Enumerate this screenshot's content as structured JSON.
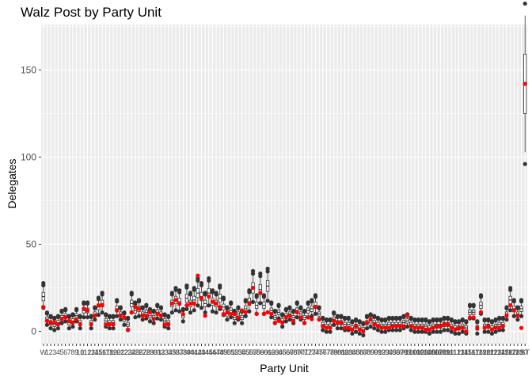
{
  "chart_data": {
    "type": "boxplot",
    "title": "Walz Post by Party Unit",
    "xlabel": "Party Unit",
    "ylabel": "Delegates",
    "ylim": [
      -7,
      176
    ],
    "yticks": [
      0,
      50,
      100,
      150
    ],
    "grid": true,
    "legend": "none",
    "colors": {
      "panel_background": "#ebebeb",
      "grid": "#ffffff",
      "simulated_points": "#333333",
      "actual_points": "#ff0000",
      "box_fill": "#ffffff",
      "box_line": "#333333"
    },
    "categories": [
      "W",
      "1",
      "2",
      "3",
      "4",
      "5",
      "6",
      "7",
      "8",
      "9",
      "10",
      "11",
      "12",
      "13",
      "14",
      "15",
      "16",
      "17",
      "18",
      "19",
      "20",
      "21",
      "22",
      "23",
      "24",
      "25",
      "26",
      "27",
      "28",
      "29",
      "30",
      "31",
      "32",
      "33",
      "34",
      "35",
      "36",
      "37",
      "38",
      "39",
      "40",
      "41",
      "42",
      "43",
      "44",
      "45",
      "46",
      "47",
      "48",
      "49",
      "50",
      "51",
      "52",
      "53",
      "54",
      "55",
      "56",
      "57",
      "58",
      "59",
      "60",
      "61",
      "62",
      "63",
      "64",
      "65",
      "66",
      "67",
      "68",
      "69",
      "70",
      "71",
      "72",
      "73",
      "74",
      "75",
      "76",
      "77",
      "78",
      "79",
      "80",
      "81",
      "82",
      "83",
      "84",
      "85",
      "86",
      "87",
      "88",
      "89",
      "90",
      "91",
      "92",
      "93",
      "94",
      "95",
      "96",
      "97",
      "98",
      "99",
      "100",
      "101",
      "102",
      "103",
      "104",
      "105",
      "106",
      "107",
      "108",
      "109",
      "110",
      "111",
      "112",
      "113",
      "114",
      "115",
      "116",
      "117",
      "118",
      "119",
      "120",
      "121",
      "122",
      "123",
      "124",
      "125",
      "126",
      "127",
      "128",
      "129",
      "130",
      "ST"
    ],
    "series": [
      {
        "values": [
          20,
          7,
          5,
          4,
          5,
          8,
          9,
          5,
          6,
          9,
          5,
          12,
          12,
          5,
          10,
          14,
          16,
          6,
          5,
          5,
          13,
          10,
          7,
          4,
          16,
          12,
          13,
          10,
          11,
          9,
          8,
          11,
          10,
          6,
          5,
          16,
          18,
          17,
          9,
          19,
          16,
          18,
          22,
          20,
          16,
          22,
          17,
          16,
          19,
          14,
          10,
          12,
          8,
          10,
          8,
          13,
          17,
          25,
          15,
          24,
          15,
          26,
          12,
          8,
          11,
          6,
          9,
          10,
          8,
          12,
          10,
          8,
          12,
          13,
          15,
          10,
          4,
          3,
          3,
          7,
          5,
          5,
          4,
          4,
          2,
          3,
          2,
          1,
          5,
          6,
          5,
          4,
          3,
          3,
          4,
          4,
          4,
          4,
          5,
          6,
          4,
          3,
          3,
          3,
          3,
          2,
          3,
          3,
          3,
          4,
          4,
          3,
          2,
          2,
          3,
          2,
          11,
          11,
          2,
          15,
          3,
          3,
          2,
          3,
          4,
          4,
          10,
          18,
          13,
          10,
          13,
          142
        ]
      },
      {
        "values": [
          14,
          6,
          5,
          5,
          4,
          7,
          8,
          6,
          5,
          7,
          4,
          13,
          12,
          4,
          9,
          15,
          15,
          4,
          4,
          4,
          12,
          9,
          8,
          1,
          11,
          14,
          13,
          9,
          9,
          11,
          7,
          10,
          9,
          4,
          4,
          16,
          18,
          16,
          10,
          15,
          16,
          16,
          32,
          19,
          9,
          20,
          17,
          16,
          14,
          10,
          11,
          10,
          10,
          8,
          12,
          11,
          16,
          25,
          10,
          22,
          10,
          11,
          10,
          5,
          6,
          5,
          8,
          9,
          6,
          11,
          8,
          5,
          8,
          7,
          14,
          7,
          3,
          2,
          2,
          6,
          5,
          5,
          2,
          2,
          1,
          3,
          1,
          0,
          5,
          7,
          4,
          3,
          2,
          2,
          2,
          3,
          3,
          3,
          3,
          9,
          3,
          2,
          2,
          2,
          1,
          1,
          2,
          3,
          3,
          4,
          4,
          2,
          1,
          2,
          2,
          0,
          8,
          8,
          2,
          11,
          2,
          3,
          1,
          2,
          2,
          3,
          9,
          15,
          12,
          9,
          2,
          142
        ]
      }
    ]
  }
}
